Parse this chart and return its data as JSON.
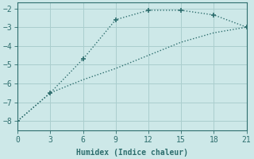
{
  "line1_x": [
    0,
    3,
    6,
    9,
    12,
    15,
    18,
    21
  ],
  "line1_y": [
    -8.0,
    -6.5,
    -4.7,
    -2.6,
    -2.1,
    -2.1,
    -2.35,
    -3.0
  ],
  "line2_x": [
    0,
    3,
    6,
    9,
    12,
    15,
    18,
    21
  ],
  "line2_y": [
    -8.0,
    -6.5,
    -5.8,
    -5.2,
    -4.5,
    -3.8,
    -3.3,
    -3.0
  ],
  "line_color": "#2e6e6e",
  "bg_color": "#cde8e8",
  "grid_color": "#aacece",
  "xlabel": "Humidex (Indice chaleur)",
  "xlim": [
    0,
    21
  ],
  "ylim": [
    -8.5,
    -1.7
  ],
  "xticks": [
    0,
    3,
    6,
    9,
    12,
    15,
    18,
    21
  ],
  "yticks": [
    -8,
    -7,
    -6,
    -5,
    -4,
    -3,
    -2
  ],
  "marker": "+",
  "markersize": 5,
  "linewidth": 1.0,
  "linestyle": ":"
}
